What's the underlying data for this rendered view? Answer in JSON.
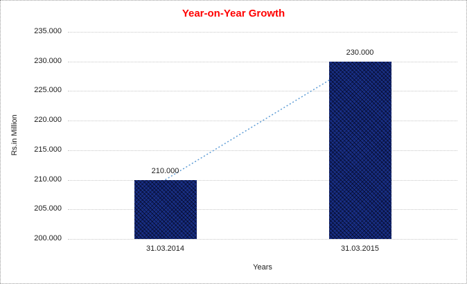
{
  "chart_data": {
    "type": "bar",
    "title": "Year-on-Year Growth",
    "title_color": "#ff0000",
    "categories": [
      "31.03.2014",
      "31.03.2015"
    ],
    "series": [
      {
        "name": "Rs.in Million",
        "type": "bar",
        "values": [
          210000,
          230000
        ],
        "data_labels": [
          "210.000",
          "230.000"
        ],
        "color": "#15297c"
      },
      {
        "name": "trendline",
        "type": "line",
        "values": [
          210000,
          230000
        ],
        "style": "dotted",
        "color": "#5b9bd5"
      }
    ],
    "xlabel": "Years",
    "ylabel": "Rs.in Million",
    "ylim": [
      200000,
      235000
    ],
    "ytick_step": 5000,
    "ytick_labels": [
      "200.000",
      "205.000",
      "210.000",
      "215.000",
      "220.000",
      "225.000",
      "230.000",
      "235.000"
    ],
    "grid": "horizontal-dotted",
    "gridline_color": "#c7c7c7",
    "legend": "none"
  }
}
